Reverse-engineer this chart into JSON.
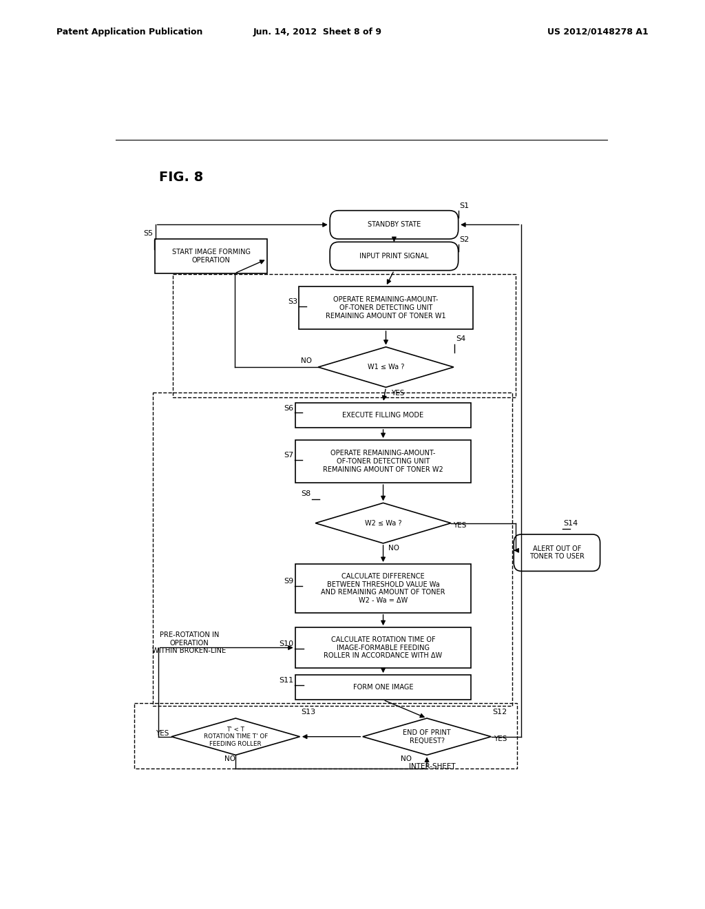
{
  "title": "FIG. 8",
  "header_left": "Patent Application Publication",
  "header_center": "Jun. 14, 2012  Sheet 8 of 9",
  "header_right": "US 2012/0148278 A1",
  "background_color": "#ffffff",
  "line_color": "#000000"
}
